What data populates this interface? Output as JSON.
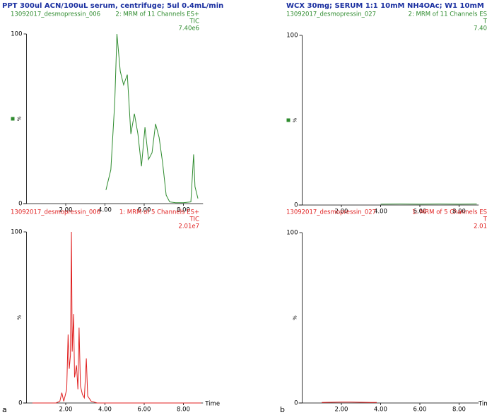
{
  "panels": [
    {
      "label": "a",
      "title": "PPT 300ul ACN/100uL serum, centrifuge; 5ul 0.4mL/min"
    },
    {
      "label": "b",
      "title": "WCX 30mg; SERUM 1:1 10mM NH4OAc; W1 10mM NH4OA"
    }
  ],
  "chart_data": [
    {
      "type": "line",
      "sample": "13092017_desmopressin_006",
      "channel": "2: MRM of 11 Channels ES+",
      "trace": "TIC",
      "intensity": "7.40e6",
      "ylabel": "%",
      "color": "#2e8b2e",
      "x": [
        4.05,
        4.3,
        4.5,
        4.61,
        4.78,
        4.95,
        5.14,
        5.32,
        5.5,
        5.68,
        5.86,
        6.04,
        6.22,
        6.4,
        6.58,
        6.76,
        6.94,
        7.12,
        7.3,
        7.6,
        8.0,
        8.38,
        8.52,
        8.59,
        8.74
      ],
      "values": [
        8,
        20,
        60,
        100,
        78,
        70,
        76,
        41,
        53,
        41,
        22,
        45,
        26,
        30,
        47,
        39,
        24,
        5,
        1,
        0.5,
        0.5,
        1,
        29,
        10,
        3
      ],
      "xlim": [
        0,
        9
      ],
      "ylim": [
        0,
        100
      ],
      "xticks": [
        {
          "value": 2,
          "label": "2.00"
        },
        {
          "value": 4,
          "label": "4.00"
        },
        {
          "value": 6,
          "label": "6.00"
        },
        {
          "value": 8,
          "label": "8.00"
        }
      ],
      "yticks": [
        0,
        100
      ]
    },
    {
      "type": "line",
      "sample": "13092017_desmopressin_006",
      "channel": "1: MRM of 5 Channels ES+",
      "trace": "TIC",
      "intensity": "2.01e7",
      "ylabel": "%",
      "xlabel": "Time",
      "color": "#e02020",
      "x": [
        0.3,
        1.5,
        1.7,
        1.8,
        1.9,
        2.05,
        2.12,
        2.18,
        2.24,
        2.29,
        2.33,
        2.4,
        2.45,
        2.55,
        2.62,
        2.68,
        2.75,
        2.85,
        2.95,
        3.05,
        3.12,
        3.3,
        3.6,
        8.9
      ],
      "values": [
        0,
        0,
        1,
        6,
        1,
        8,
        40,
        20,
        28,
        100,
        30,
        52,
        15,
        22,
        8,
        44,
        10,
        5,
        3,
        26,
        4,
        1,
        0,
        0
      ],
      "xlim": [
        0,
        9
      ],
      "ylim": [
        0,
        100
      ],
      "xticks": [
        {
          "value": 2,
          "label": "2.00"
        },
        {
          "value": 4,
          "label": "4.00"
        },
        {
          "value": 6,
          "label": "6.00"
        },
        {
          "value": 8,
          "label": "8.00"
        }
      ],
      "yticks": [
        0,
        100
      ]
    },
    {
      "type": "line",
      "sample": "13092017_desmopressin_027",
      "channel": "2: MRM of 11 Channels ES",
      "trace": "T",
      "intensity": "7.40",
      "ylabel": "%",
      "color": "#2e8b2e",
      "x": [
        4.0,
        5.0,
        6.0,
        7.0,
        8.0,
        8.9
      ],
      "values": [
        0.5,
        0.6,
        0.5,
        0.6,
        0.5,
        0.6
      ],
      "xlim": [
        0,
        9
      ],
      "ylim": [
        0,
        100
      ],
      "xticks": [
        {
          "value": 2,
          "label": "2.00"
        },
        {
          "value": 4,
          "label": "4.00"
        },
        {
          "value": 6,
          "label": "6.00"
        },
        {
          "value": 8,
          "label": "8.00"
        }
      ],
      "yticks": [
        0,
        100
      ]
    },
    {
      "type": "line",
      "sample": "13092017_desmopressin_027",
      "channel": "1: MRM of 5 Channels ES",
      "trace": "T",
      "intensity": "2.01",
      "ylabel": "%",
      "xlabel": "Tim",
      "color": "#e02020",
      "x": [
        1.0,
        1.5,
        2.0,
        2.5,
        3.0,
        3.5,
        3.8
      ],
      "values": [
        0.3,
        0.4,
        0.5,
        0.5,
        0.4,
        0.3,
        0.3
      ],
      "xlim": [
        0,
        9
      ],
      "ylim": [
        0,
        100
      ],
      "xticks": [
        {
          "value": 2,
          "label": "2.00"
        },
        {
          "value": 4,
          "label": "4.00"
        },
        {
          "value": 6,
          "label": "6.00"
        },
        {
          "value": 8,
          "label": "8.00"
        }
      ],
      "yticks": [
        0,
        100
      ]
    }
  ]
}
